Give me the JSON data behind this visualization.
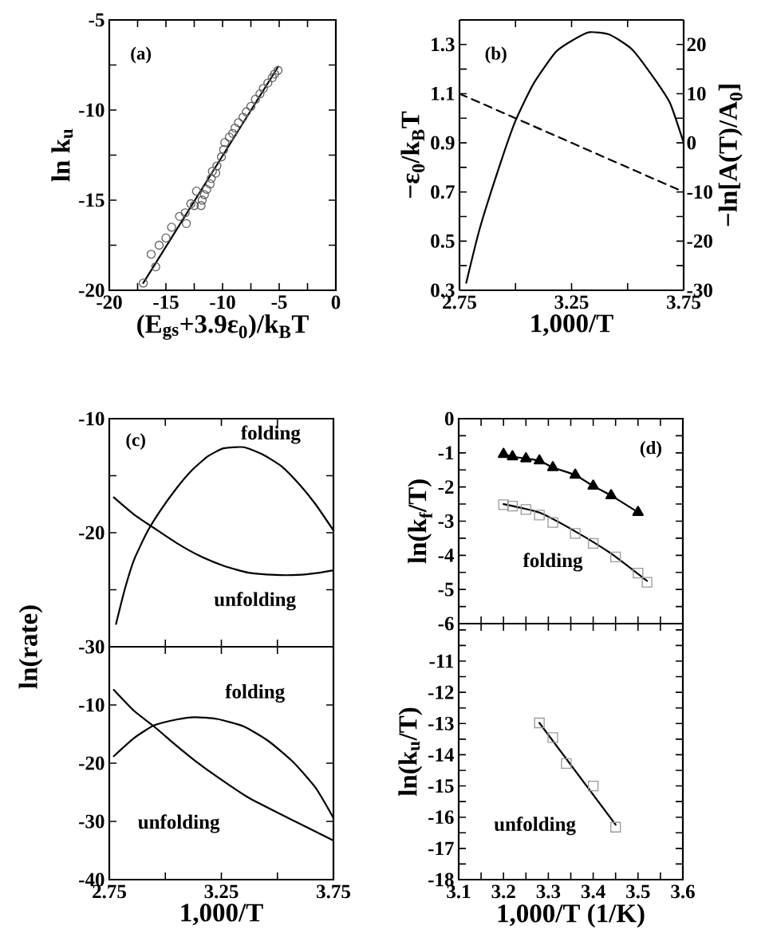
{
  "chart_data": [
    {
      "type": "scatter",
      "title": "(a)",
      "xlabel": "(E$_{gs}$+3.9ε$_{0}$)/k$_{B}$T",
      "ylabel": "ln k$_{u}$",
      "xlim": [
        -20,
        0
      ],
      "ylim": [
        -20,
        -5
      ],
      "xticks": [
        -20,
        {
          "value": -17.5,
          "label": null
        },
        -15,
        {
          "value": -12.5,
          "label": null
        },
        -10,
        {
          "value": -7.5,
          "label": null
        },
        -5,
        {
          "value": -2.5,
          "label": null
        },
        0
      ],
      "yticks": [
        -20,
        {
          "value": -17.5,
          "label": null
        },
        -15,
        {
          "value": -12.5,
          "label": null
        },
        -10,
        {
          "value": -7.5,
          "label": null
        },
        -5
      ],
      "series": [
        {
          "type": "scatter",
          "marker": "circle",
          "color": "#606060",
          "x": [
            -17.0,
            -16.3,
            -15.9,
            -15.6,
            -15.0,
            -14.5,
            -13.8,
            -13.2,
            -13.3,
            -12.8,
            -12.5,
            -12.3,
            -11.9,
            -11.8,
            -11.6,
            -11.4,
            -11.1,
            -11.0,
            -10.9,
            -10.6,
            -10.5,
            -10.1,
            -9.9,
            -9.8,
            -9.4,
            -9.1,
            -8.9,
            -8.6,
            -8.2,
            -7.9,
            -7.5,
            -7.1,
            -6.7,
            -6.4,
            -6.0,
            -5.6,
            -5.4,
            -5.1
          ],
          "values": [
            -19.6,
            -18.0,
            -18.7,
            -17.5,
            -17.1,
            -16.5,
            -15.9,
            -16.3,
            -15.7,
            -15.2,
            -15.3,
            -14.5,
            -15.3,
            -15.0,
            -14.7,
            -14.4,
            -14.1,
            -13.8,
            -13.4,
            -13.5,
            -13.1,
            -12.6,
            -12.2,
            -11.8,
            -11.5,
            -11.3,
            -11.0,
            -10.7,
            -10.4,
            -10.1,
            -9.8,
            -9.4,
            -9.1,
            -8.8,
            -8.5,
            -8.2,
            -8.0,
            -7.8
          ]
        },
        {
          "type": "line",
          "color": "#000000",
          "x": [
            -17.0,
            -5.1
          ],
          "values": [
            -19.6,
            -7.6
          ]
        }
      ]
    },
    {
      "type": "line",
      "title": "(b)",
      "xlabel": "1,000/T",
      "ylabel": "−ε$_{0}$/k$_{B}$T",
      "y2label": "−ln[A(T)/A$_{0}$]",
      "xlim": [
        2.75,
        3.75
      ],
      "ylim": [
        0.3,
        1.4
      ],
      "y2lim": [
        -30,
        25
      ],
      "xticks": [
        2.75,
        {
          "value": 3.0,
          "label": null
        },
        3.25,
        {
          "value": 3.5,
          "label": null
        },
        3.75
      ],
      "yticks": [
        0.3,
        {
          "value": 0.4,
          "label": null
        },
        0.5,
        {
          "value": 0.6,
          "label": null
        },
        0.7,
        {
          "value": 0.8,
          "label": null
        },
        0.9,
        {
          "value": 1.0,
          "label": null
        },
        1.1,
        {
          "value": 1.2,
          "label": null
        },
        1.3
      ],
      "y2ticks": [
        -30,
        {
          "value": -25,
          "label": null
        },
        -20,
        {
          "value": -15,
          "label": null
        },
        -10,
        {
          "value": -5,
          "label": null
        },
        0,
        {
          "value": 5,
          "label": null
        },
        10,
        {
          "value": 15,
          "label": null
        },
        20
      ],
      "series": [
        {
          "color": "#000000",
          "x": [
            2.78,
            2.84,
            2.93,
            3.0,
            3.08,
            3.18,
            3.26,
            3.33,
            3.42,
            3.52,
            3.62,
            3.69,
            3.75
          ],
          "values": [
            0.33,
            0.55,
            0.81,
            0.99,
            1.14,
            1.27,
            1.32,
            1.35,
            1.34,
            1.28,
            1.16,
            1.06,
            0.9
          ]
        },
        {
          "color": "#000000",
          "axis": "y2",
          "line_style": "dashed",
          "x": [
            2.75,
            3.75
          ],
          "values": [
            10,
            -10
          ]
        }
      ]
    },
    {
      "type": "line",
      "title": "(c)",
      "ylabel": "ln(rate)",
      "xlim": [
        2.75,
        3.75
      ],
      "ylim": [
        -30,
        -10
      ],
      "tick_labels": "y",
      "xticks": [
        {
          "value": 2.75,
          "label": null
        },
        {
          "value": 3.0,
          "label": null
        },
        {
          "value": 3.25,
          "label": null
        },
        {
          "value": 3.5,
          "label": null
        },
        {
          "value": 3.75,
          "label": null
        }
      ],
      "yticks": [
        -30,
        {
          "value": -25,
          "label": null
        },
        -20,
        {
          "value": -15,
          "label": null
        },
        -10
      ],
      "annotations": [
        "folding",
        "unfolding"
      ],
      "series": [
        {
          "color": "#000000",
          "x": [
            2.78,
            2.82,
            2.86,
            2.92,
            2.98,
            3.05,
            3.12,
            3.19,
            3.26,
            3.35,
            3.43,
            3.52,
            3.6,
            3.67,
            3.75
          ],
          "values": [
            -28.0,
            -24.9,
            -22.4,
            -19.9,
            -18.0,
            -16.1,
            -14.5,
            -13.3,
            -12.6,
            -12.5,
            -13.1,
            -14.2,
            -15.8,
            -17.5,
            -19.8
          ]
        },
        {
          "color": "#000000",
          "x": [
            2.77,
            2.86,
            2.95,
            3.05,
            3.15,
            3.26,
            3.37,
            3.49,
            3.59,
            3.69,
            3.75
          ],
          "values": [
            -16.9,
            -18.4,
            -19.6,
            -20.9,
            -22.0,
            -22.9,
            -23.5,
            -23.7,
            -23.7,
            -23.5,
            -23.3
          ]
        }
      ]
    },
    {
      "type": "line",
      "xlabel": "1,000/T",
      "xlim": [
        2.75,
        3.75
      ],
      "ylim": [
        -40,
        0
      ],
      "xticks": [
        2.75,
        {
          "value": 3.0,
          "label": null
        },
        3.25,
        {
          "value": 3.5,
          "label": null
        },
        3.75
      ],
      "yticks": [
        -40,
        -30,
        -20,
        -10
      ],
      "annotations": [
        "folding",
        "unfolding"
      ],
      "series": [
        {
          "color": "#000000",
          "x": [
            2.77,
            2.86,
            2.95,
            3.05,
            3.15,
            3.26,
            3.37,
            3.49,
            3.62,
            3.75
          ],
          "values": [
            -7.4,
            -11.0,
            -13.7,
            -17.0,
            -20.1,
            -23.1,
            -25.9,
            -28.3,
            -30.8,
            -33.3
          ]
        },
        {
          "color": "#000000",
          "x": [
            2.77,
            2.86,
            2.95,
            3.05,
            3.13,
            3.23,
            3.35,
            3.46,
            3.57,
            3.67,
            3.75
          ],
          "values": [
            -18.8,
            -15.7,
            -13.5,
            -12.5,
            -12.1,
            -12.4,
            -13.7,
            -16.2,
            -19.8,
            -24.2,
            -29.4
          ]
        }
      ]
    },
    {
      "type": "scatter",
      "title": "(d)",
      "ylabel": "ln(k$_{f}$/T)",
      "xlim": [
        3.1,
        3.6
      ],
      "ylim": [
        -6,
        0
      ],
      "tick_labels": "y",
      "xticks": [
        {
          "value": 3.1,
          "label": null
        },
        {
          "value": 3.15,
          "label": null
        },
        {
          "value": 3.2,
          "label": null
        },
        {
          "value": 3.25,
          "label": null
        },
        {
          "value": 3.3,
          "label": null
        },
        {
          "value": 3.35,
          "label": null
        },
        {
          "value": 3.4,
          "label": null
        },
        {
          "value": 3.45,
          "label": null
        },
        {
          "value": 3.5,
          "label": null
        },
        {
          "value": 3.55,
          "label": null
        },
        {
          "value": 3.6,
          "label": null
        }
      ],
      "yticks": [
        -6,
        {
          "value": -5.5,
          "label": null
        },
        -5,
        {
          "value": -4.5,
          "label": null
        },
        -4,
        {
          "value": -3.5,
          "label": null
        },
        -3,
        {
          "value": -2.5,
          "label": null
        },
        -2,
        {
          "value": -1.5,
          "label": null
        },
        -1,
        {
          "value": -0.5,
          "label": null
        },
        0
      ],
      "annotations": [
        "folding"
      ],
      "series": [
        {
          "type": "line",
          "marker": "triangle",
          "color": "#000000",
          "x": [
            3.2,
            3.22,
            3.25,
            3.28,
            3.31,
            3.36,
            3.4,
            3.44,
            3.5
          ],
          "values": [
            -1.04,
            -1.11,
            -1.17,
            -1.23,
            -1.43,
            -1.65,
            -1.97,
            -2.25,
            -2.74
          ]
        },
        {
          "type": "scatter",
          "marker": "square",
          "color": "#999999",
          "x": [
            3.2,
            3.22,
            3.25,
            3.28,
            3.31,
            3.36,
            3.4,
            3.45,
            3.5,
            3.52
          ],
          "values": [
            -2.52,
            -2.56,
            -2.66,
            -2.82,
            -3.04,
            -3.36,
            -3.65,
            -4.05,
            -4.52,
            -4.79
          ]
        },
        {
          "type": "line",
          "color": "#000000",
          "x": [
            3.2,
            3.28,
            3.36,
            3.44,
            3.52
          ],
          "values": [
            -2.5,
            -2.75,
            -3.3,
            -3.95,
            -4.75
          ]
        }
      ]
    },
    {
      "type": "scatter",
      "xlabel": "1,000/T (1/K)",
      "ylabel": "ln(k$_{u}$/T)",
      "xlim": [
        3.1,
        3.6
      ],
      "ylim": [
        -18,
        -9.8
      ],
      "xticks": [
        3.1,
        {
          "value": 3.15,
          "label": null
        },
        3.2,
        {
          "value": 3.25,
          "label": null
        },
        3.3,
        {
          "value": 3.35,
          "label": null
        },
        3.4,
        {
          "value": 3.45,
          "label": null
        },
        3.5,
        {
          "value": 3.55,
          "label": null
        },
        3.6
      ],
      "yticks": [
        -18,
        {
          "value": -17.5,
          "label": null
        },
        -17,
        {
          "value": -16.5,
          "label": null
        },
        -16,
        {
          "value": -15.5,
          "label": null
        },
        -15,
        {
          "value": -14.5,
          "label": null
        },
        -14,
        {
          "value": -13.5,
          "label": null
        },
        -13,
        {
          "value": -12.5,
          "label": null
        },
        -12,
        {
          "value": -11.5,
          "label": null
        },
        -11,
        {
          "value": -10.5,
          "label": null
        },
        {
          "value": -10,
          "label": null
        }
      ],
      "annotations": [
        "unfolding"
      ],
      "series": [
        {
          "type": "scatter",
          "marker": "square",
          "color": "#999999",
          "x": [
            3.28,
            3.31,
            3.34,
            3.4,
            3.45
          ],
          "values": [
            -12.98,
            -13.45,
            -14.28,
            -15.0,
            -16.32
          ]
        },
        {
          "type": "line",
          "color": "#000000",
          "x": [
            3.28,
            3.45
          ],
          "values": [
            -12.98,
            -16.24
          ]
        }
      ]
    }
  ]
}
